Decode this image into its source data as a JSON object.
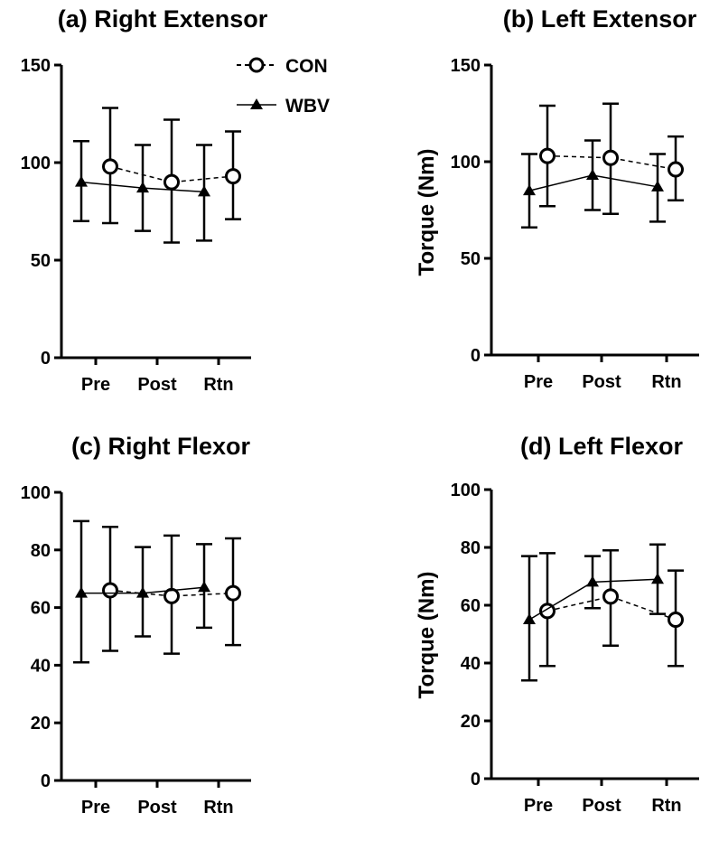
{
  "chart_data": [
    {
      "type": "line",
      "title": "(a) Right Extensor",
      "ylabel": "",
      "xlabel": "",
      "categories": [
        "Pre",
        "Post",
        "Rtn"
      ],
      "ylim": [
        0,
        150
      ],
      "yticks": [
        0,
        50,
        100,
        150
      ],
      "series": [
        {
          "name": "CON",
          "values": [
            98,
            90,
            93
          ],
          "err_low": [
            69,
            59,
            71
          ],
          "err_high": [
            128,
            122,
            116
          ]
        },
        {
          "name": "WBV",
          "values": [
            90,
            87,
            85
          ],
          "err_low": [
            70,
            65,
            60
          ],
          "err_high": [
            111,
            109,
            109
          ]
        }
      ],
      "legend": {
        "position": "top-right",
        "entries": [
          "CON",
          "WBV"
        ]
      }
    },
    {
      "type": "line",
      "title": "(b) Left Extensor",
      "ylabel": "Torque (Nm)",
      "xlabel": "",
      "categories": [
        "Pre",
        "Post",
        "Rtn"
      ],
      "ylim": [
        0,
        150
      ],
      "yticks": [
        0,
        50,
        100,
        150
      ],
      "series": [
        {
          "name": "CON",
          "values": [
            103,
            102,
            96
          ],
          "err_low": [
            77,
            73,
            80
          ],
          "err_high": [
            129,
            130,
            113
          ]
        },
        {
          "name": "WBV",
          "values": [
            85,
            93,
            87
          ],
          "err_low": [
            66,
            75,
            69
          ],
          "err_high": [
            104,
            111,
            104
          ]
        }
      ]
    },
    {
      "type": "line",
      "title": "(c) Right Flexor",
      "ylabel": "",
      "xlabel": "",
      "categories": [
        "Pre",
        "Post",
        "Rtn"
      ],
      "ylim": [
        0,
        100
      ],
      "yticks": [
        0,
        20,
        40,
        60,
        80,
        100
      ],
      "series": [
        {
          "name": "CON",
          "values": [
            66,
            64,
            65
          ],
          "err_low": [
            45,
            44,
            47
          ],
          "err_high": [
            88,
            85,
            84
          ]
        },
        {
          "name": "WBV",
          "values": [
            65,
            65,
            67
          ],
          "err_low": [
            41,
            50,
            53
          ],
          "err_high": [
            90,
            81,
            82
          ]
        }
      ]
    },
    {
      "type": "line",
      "title": "(d) Left Flexor",
      "ylabel": "Torque (Nm)",
      "xlabel": "",
      "categories": [
        "Pre",
        "Post",
        "Rtn"
      ],
      "ylim": [
        0,
        100
      ],
      "yticks": [
        0,
        20,
        40,
        60,
        80,
        100
      ],
      "series": [
        {
          "name": "CON",
          "values": [
            58,
            63,
            55
          ],
          "err_low": [
            39,
            46,
            39
          ],
          "err_high": [
            78,
            79,
            72
          ]
        },
        {
          "name": "WBV",
          "values": [
            55,
            68,
            69
          ],
          "err_low": [
            34,
            59,
            57
          ],
          "err_high": [
            77,
            77,
            81
          ]
        }
      ]
    }
  ]
}
